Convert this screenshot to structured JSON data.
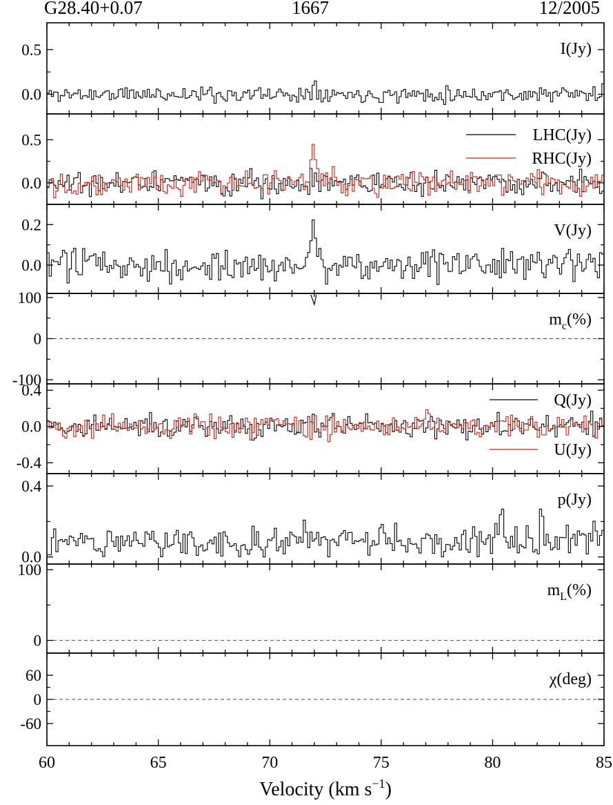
{
  "header": {
    "source": "G28.40+0.07",
    "frequency": "1667",
    "epoch": "12/2005"
  },
  "colors": {
    "black": "#000000",
    "red": "#d02010",
    "dashed_zero": "#3040c0"
  },
  "chart_data": {
    "type": "line",
    "style": "step",
    "xlabel": "Velocity (km s",
    "xlabel_sup": "−1",
    "xlabel_close": ")",
    "xlim": [
      60,
      85
    ],
    "x_ticks": [
      60,
      65,
      70,
      75,
      80,
      85
    ],
    "channel_width_kms": 0.1,
    "grid": false,
    "panels": [
      {
        "id": "I",
        "label": "I(Jy)",
        "ylim": [
          -0.22,
          0.8
        ],
        "y_ticks": [
          {
            "v": 0.5,
            "t": "0.5"
          },
          {
            "v": 0.0,
            "t": "0.0"
          }
        ],
        "series": [
          {
            "name": "I(Jy)",
            "color": "#000000",
            "noise": 0.045,
            "seed": 11,
            "features": [
              {
                "x": 72.0,
                "y": 0.16,
                "w": 0.12
              },
              {
                "x": 72.3,
                "y": 0.05,
                "w": 0.12
              }
            ]
          }
        ]
      },
      {
        "id": "LR",
        "label": "",
        "ylim": [
          -0.25,
          0.8
        ],
        "y_ticks": [
          {
            "v": 0.5,
            "t": "0.5"
          },
          {
            "v": 0.0,
            "t": "0.0"
          }
        ],
        "legend": [
          "LHC(Jy)",
          "RHC(Jy)"
        ],
        "legend_placement": "top-right",
        "series": [
          {
            "name": "LHC(Jy)",
            "color": "#000000",
            "noise": 0.07,
            "seed": 21,
            "features": [
              {
                "x": 72.0,
                "y": 0.05,
                "w": 0.12
              }
            ]
          },
          {
            "name": "RHC(Jy)",
            "color": "#d02010",
            "noise": 0.07,
            "seed": 22,
            "features": [
              {
                "x": 71.95,
                "y": 0.42,
                "w": 0.14
              },
              {
                "x": 72.2,
                "y": 0.15,
                "w": 0.15
              }
            ]
          }
        ]
      },
      {
        "id": "V",
        "label": "V(Jy)",
        "ylim": [
          -0.14,
          0.3
        ],
        "y_ticks": [
          {
            "v": 0.2,
            "t": "0.2"
          },
          {
            "v": 0.0,
            "t": "0.0"
          }
        ],
        "series": [
          {
            "name": "V(Jy)",
            "color": "#000000",
            "noise": 0.04,
            "seed": 31,
            "features": [
              {
                "x": 71.95,
                "y": 0.2,
                "w": 0.13
              },
              {
                "x": 72.2,
                "y": 0.08,
                "w": 0.13
              }
            ]
          }
        ]
      },
      {
        "id": "mc",
        "label": "m",
        "label_sub": "c",
        "label_tail": "(%)",
        "ylim": [
          -110,
          110
        ],
        "y_ticks": [
          {
            "v": 100,
            "t": "100"
          },
          {
            "v": 0,
            "t": "0"
          },
          {
            "v": -100,
            "t": "-100"
          }
        ],
        "zero_line": true,
        "series": [],
        "annotation_marks": [
          {
            "x": 72.0,
            "shape": "v-dip",
            "depth": -35
          }
        ]
      },
      {
        "id": "QU",
        "label": "",
        "ylim": [
          -0.52,
          0.47
        ],
        "y_ticks": [
          {
            "v": 0.4,
            "t": "0.4"
          },
          {
            "v": 0.0,
            "t": "0.0"
          },
          {
            "v": -0.4,
            "t": "-0.4"
          }
        ],
        "legend": [
          "Q(Jy)",
          "U(Jy)"
        ],
        "legend_placement": "right",
        "series": [
          {
            "name": "Q(Jy)",
            "color": "#000000",
            "noise": 0.065,
            "seed": 41,
            "features": []
          },
          {
            "name": "U(Jy)",
            "color": "#d02010",
            "noise": 0.065,
            "seed": 42,
            "features": []
          }
        ]
      },
      {
        "id": "p",
        "label": "p(Jy)",
        "ylim": [
          -0.04,
          0.47
        ],
        "y_ticks": [
          {
            "v": 0.4,
            "t": "0.4"
          },
          {
            "v": 0.0,
            "t": "0.0"
          }
        ],
        "series": [
          {
            "name": "p(Jy)",
            "color": "#000000",
            "noise": 0.045,
            "offset": 0.09,
            "seed": 51,
            "features": [
              {
                "x": 80.4,
                "y": 0.18,
                "w": 0.1
              },
              {
                "x": 82.2,
                "y": 0.15,
                "w": 0.1
              }
            ]
          }
        ]
      },
      {
        "id": "mL",
        "label": "m",
        "label_sub": "L",
        "label_tail": "(%)",
        "ylim": [
          -18,
          108
        ],
        "y_ticks": [
          {
            "v": 100,
            "t": "100"
          },
          {
            "v": 0,
            "t": "0"
          }
        ],
        "zero_line": true,
        "series": []
      },
      {
        "id": "chi",
        "label": "χ(deg)",
        "ylim": [
          -115,
          115
        ],
        "y_ticks": [
          {
            "v": 60,
            "t": "60"
          },
          {
            "v": 0,
            "t": "0"
          },
          {
            "v": -60,
            "t": "-60"
          }
        ],
        "zero_line": true,
        "series": []
      }
    ]
  }
}
